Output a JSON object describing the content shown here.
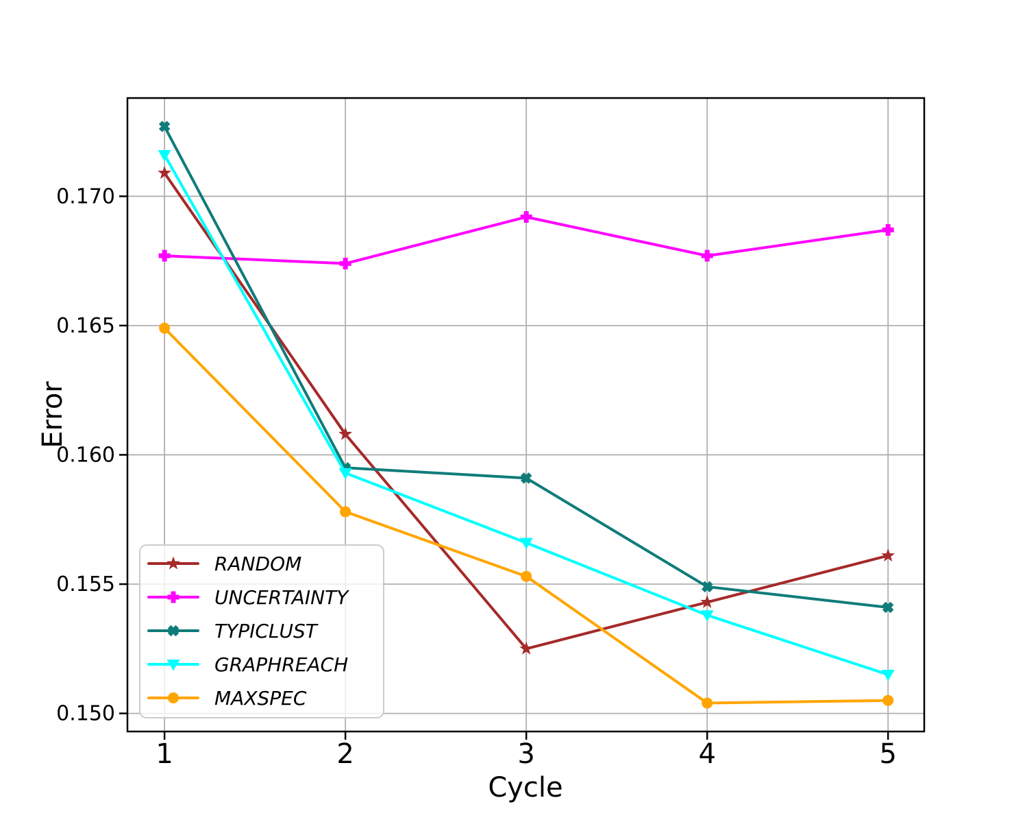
{
  "chart_data": {
    "type": "line",
    "title": "",
    "xlabel": "Cycle",
    "ylabel": "Error",
    "x": [
      1,
      2,
      3,
      4,
      5
    ],
    "xlim": [
      0.795,
      5.2
    ],
    "ylim": [
      0.1493,
      0.1738
    ],
    "xticks": [
      1,
      2,
      3,
      4,
      5
    ],
    "xtick_labels": [
      "1",
      "2",
      "3",
      "4",
      "5"
    ],
    "yticks": [
      0.15,
      0.155,
      0.16,
      0.165,
      0.17
    ],
    "ytick_labels": [
      "0.150",
      "0.155",
      "0.160",
      "0.165",
      "0.170"
    ],
    "grid": true,
    "legend_position": "lower-left",
    "series": [
      {
        "name": "RANDOM",
        "color": "#A52A2A",
        "marker": "star",
        "values": [
          0.1709,
          0.1608,
          0.1525,
          0.1543,
          0.1561
        ]
      },
      {
        "name": "UNCERTAINTY",
        "color": "#FF00FF",
        "marker": "plus",
        "values": [
          0.1677,
          0.1674,
          0.1692,
          0.1677,
          0.1687
        ]
      },
      {
        "name": "TYPICLUST",
        "color": "#0F7C7A",
        "marker": "x",
        "values": [
          0.1727,
          0.1595,
          0.1591,
          0.1549,
          0.1541
        ]
      },
      {
        "name": "GRAPHREACH",
        "color": "#00FFFF",
        "marker": "triangle-down",
        "values": [
          0.1716,
          0.1593,
          0.1566,
          0.1538,
          0.1515
        ]
      },
      {
        "name": "MAXSPEC",
        "color": "#FFA500",
        "marker": "circle",
        "values": [
          0.1649,
          0.1578,
          0.1553,
          0.1504,
          0.1505
        ]
      }
    ],
    "colors": {
      "grid": "#b0b0b0",
      "spine": "#000000",
      "text": "#000000",
      "legend_border": "#cccccc",
      "legend_background": "#ffffff",
      "background": "#ffffff"
    }
  }
}
